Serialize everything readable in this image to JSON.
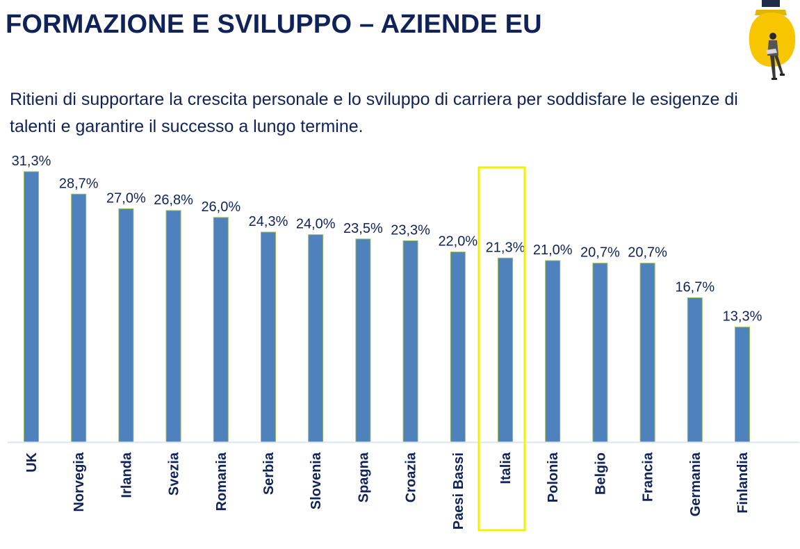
{
  "header": {
    "title": "FORMAZIONE E SVILUPPO – AZIENDE EU"
  },
  "question": "Ritieni di supportare la crescita personale e lo sviluppo di carriera per soddisfare le esigenze di talenti e garantire il successo a lungo termine.",
  "logo": {
    "icon": "lightbulb-with-woman-icon",
    "bulb_color": "#f7c600"
  },
  "colors": {
    "bar": "#4f81bd",
    "bar_edge": "#9bbb59",
    "text": "#0f2259",
    "highlight": "#f2f200",
    "axis": "#d9e6f2"
  },
  "chart_data": {
    "type": "bar",
    "title": "",
    "xlabel": "",
    "ylabel": "",
    "ylim": [
      0,
      31.3
    ],
    "grid": false,
    "legend": "none",
    "highlight_category": "Italia",
    "categories": [
      "UK",
      "Norvegia",
      "Irlanda",
      "Svezia",
      "Romania",
      "Serbia",
      "Slovenia",
      "Spagna",
      "Croazia",
      "Paesi Bassi",
      "Italia",
      "Polonia",
      "Belgio",
      "Francia",
      "Germania",
      "Finlandia"
    ],
    "values": [
      31.3,
      28.7,
      27.0,
      26.8,
      26.0,
      24.3,
      24.0,
      23.5,
      23.3,
      22.0,
      21.3,
      21.0,
      20.7,
      20.7,
      16.7,
      13.3
    ],
    "value_labels": [
      "31,3%",
      "28,7%",
      "27,0%",
      "26,8%",
      "26,0%",
      "24,3%",
      "24,0%",
      "23,5%",
      "23,3%",
      "22,0%",
      "21,3%",
      "21,0%",
      "20,7%",
      "20,7%",
      "16,7%",
      "13,3%"
    ]
  }
}
